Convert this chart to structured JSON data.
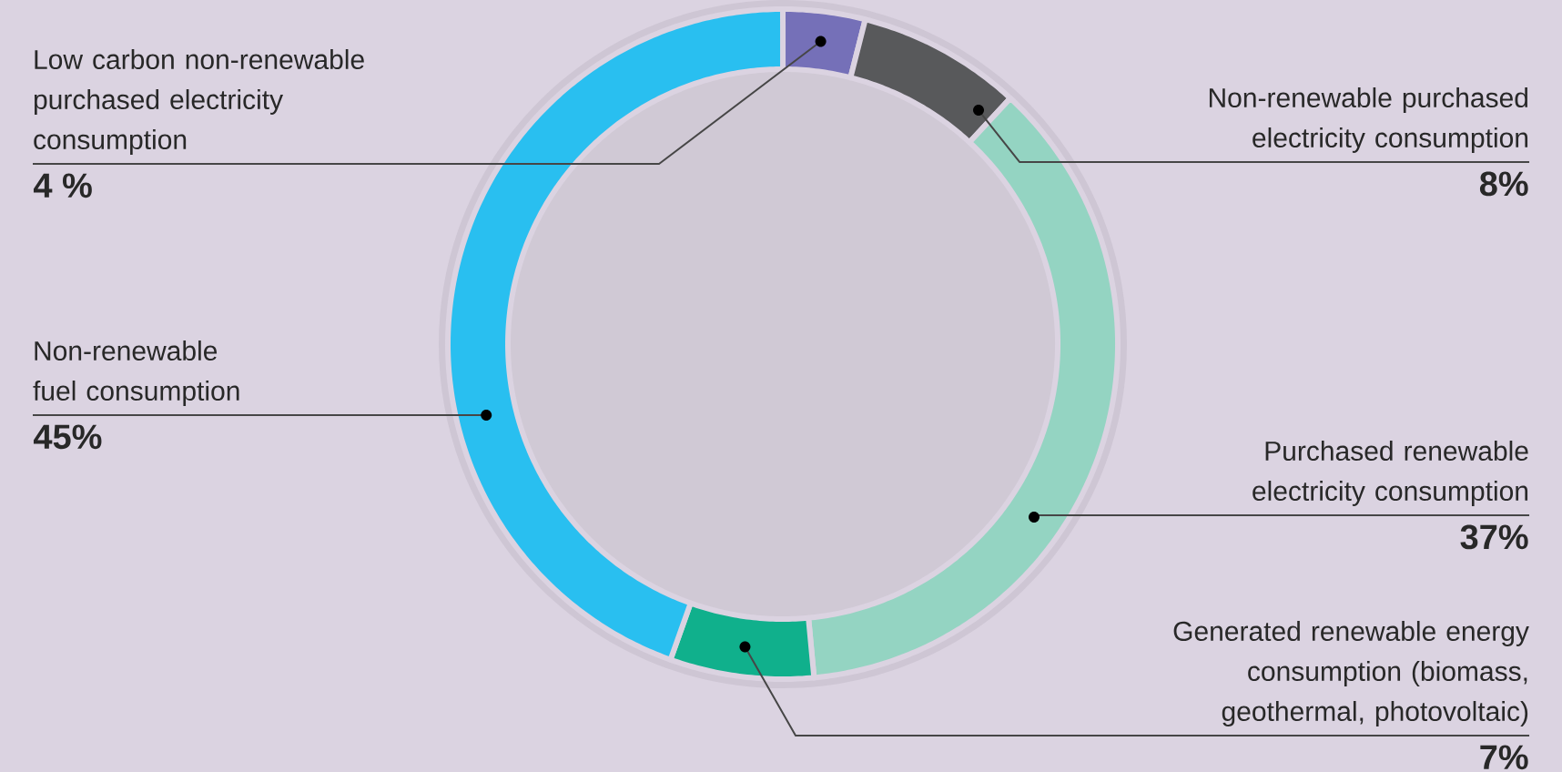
{
  "chart_data": {
    "type": "donut",
    "categories": [
      "Low carbon non-renewable purchased electricity consumption",
      "Non-renewable purchased electricity consumption",
      "Purchased renewable electricity consumption",
      "Generated renewable energy consumption (biomass, geothermal, photovoltaic)",
      "Non-renewable fuel consumption"
    ],
    "values": [
      4,
      8,
      37,
      7,
      45
    ],
    "value_labels": [
      "4 %",
      "8%",
      "37%",
      "7%",
      "45%"
    ],
    "colors": [
      "#7570b8",
      "#58595b",
      "#94d4c2",
      "#10b08c",
      "#29bff0"
    ]
  }
}
